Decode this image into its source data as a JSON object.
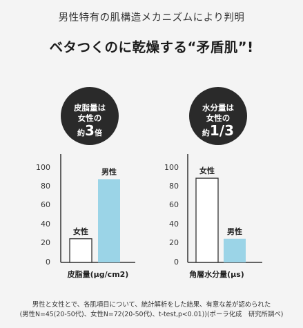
{
  "header": {
    "subtitle": "男性特有の肌構造メカニズムにより判明",
    "title": "ベタつくのに乾燥する“矛盾肌”!"
  },
  "colors": {
    "male_bar": "#9bd4e7",
    "female_bar": "#ffffff",
    "badge": "#2a2a2a",
    "badge_text": "#ffffff",
    "axis": "#333333"
  },
  "chart_data": [
    {
      "type": "bar",
      "xlabel": "皮脂量(μg/cm2)",
      "ylim": [
        0,
        100
      ],
      "yticks": [
        "100",
        "80",
        "60",
        "40",
        "20",
        "0"
      ],
      "categories": [
        "女性",
        "男性"
      ],
      "values": [
        25,
        88
      ],
      "badge": {
        "line1": "皮脂量は",
        "line2": "女性の",
        "prefix": "約",
        "value": "3",
        "suffix": "倍"
      }
    },
    {
      "type": "bar",
      "xlabel": "角層水分量(μs)",
      "ylim": [
        0,
        100
      ],
      "yticks": [
        "100",
        "80",
        "60",
        "40",
        "20",
        "0"
      ],
      "categories": [
        "女性",
        "男性"
      ],
      "values": [
        89,
        25
      ],
      "badge": {
        "line1": "水分量は",
        "line2": "女性の",
        "prefix": "約",
        "value": "1/3",
        "suffix": ""
      }
    }
  ],
  "footnote": {
    "line1": "男性と女性とで、各肌項目について、統計解析をした結果、有意な差が認められた",
    "line2": "(男性N=45(20-50代)、女性N=72(20-50代)、t-test,p<0.01))(ポーラ化成　研究所調べ)"
  }
}
